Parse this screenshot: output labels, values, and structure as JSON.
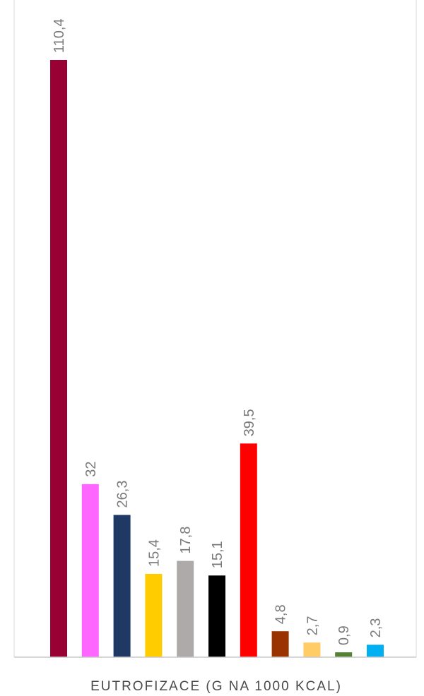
{
  "chart_data": {
    "type": "bar",
    "title": "",
    "xlabel": "EUTROFIZACE (G NA 1000 KCAL)",
    "ylabel": "",
    "categories": [
      "",
      "",
      "",
      "",
      "",
      "",
      "",
      "",
      "",
      "",
      ""
    ],
    "values": [
      110.4,
      32,
      26.3,
      15.4,
      17.8,
      15.1,
      39.5,
      4.8,
      2.7,
      0.9,
      2.3
    ],
    "value_labels": [
      "110,4",
      "32",
      "26,3",
      "15,4",
      "17,8",
      "15,1",
      "39,5",
      "4,8",
      "2,7",
      "0,9",
      "2,3"
    ],
    "colors": [
      "#990033",
      "#ff66ff",
      "#1f3864",
      "#ffcc00",
      "#aeaaaa",
      "#000000",
      "#ff0000",
      "#993300",
      "#ffcc66",
      "#548235",
      "#00b0f0"
    ],
    "ylim": [
      0,
      110.4
    ],
    "grid": false,
    "legend": "none"
  }
}
